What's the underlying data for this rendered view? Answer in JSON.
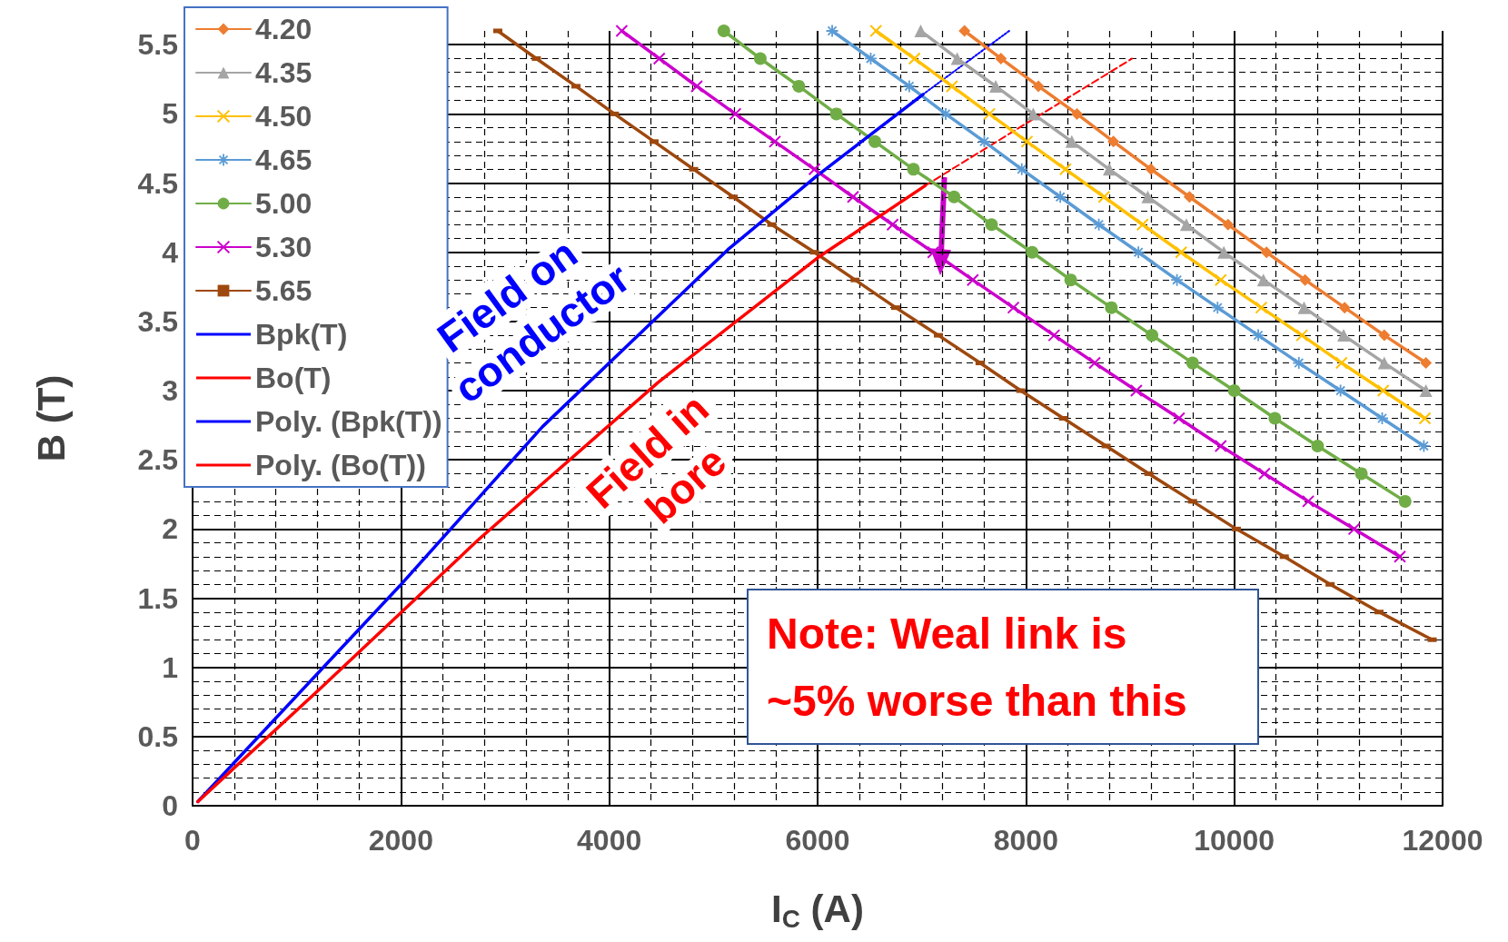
{
  "chart_data": {
    "type": "line",
    "xlabel": "I$_{C}$ (A)",
    "ylabel": "B (T)",
    "xlim": [
      0,
      12000
    ],
    "xticks": [
      0,
      2000,
      4000,
      6000,
      8000,
      10000,
      12000
    ],
    "ylim": [
      0,
      5.6
    ],
    "yticks": [
      0,
      0.5,
      1,
      1.5,
      2,
      2.5,
      3,
      3.5,
      4,
      4.5,
      5,
      5.5
    ],
    "grid": true,
    "legend": "top left",
    "line_style": "solid",
    "series": [
      {
        "name": "4.20",
        "color": "#ed7d31",
        "marker": "diamond",
        "x": [
          7410,
          7760,
          8120,
          8490,
          8840,
          9200,
          9570,
          9940,
          10310,
          10680,
          11060,
          11440,
          11840
        ],
        "values": [
          5.6,
          5.4,
          5.2,
          5.0,
          4.8,
          4.6,
          4.4,
          4.2,
          4.0,
          3.8,
          3.6,
          3.4,
          3.2
        ]
      },
      {
        "name": "4.35",
        "color": "#a5a5a5",
        "marker": "triangle",
        "x": [
          6990,
          7340,
          7710,
          8070,
          8440,
          8800,
          9170,
          9540,
          9900,
          10280,
          10670,
          11050,
          11440,
          11840
        ],
        "values": [
          5.6,
          5.4,
          5.2,
          5.0,
          4.8,
          4.6,
          4.4,
          4.2,
          4.0,
          3.8,
          3.6,
          3.4,
          3.2,
          3.0
        ]
      },
      {
        "name": "4.50",
        "color": "#ffc000",
        "marker": "cross",
        "x": [
          6560,
          6930,
          7290,
          7650,
          8010,
          8380,
          8750,
          9120,
          9490,
          9870,
          10260,
          10650,
          11030,
          11430,
          11830
        ],
        "values": [
          5.6,
          5.4,
          5.2,
          5.0,
          4.8,
          4.6,
          4.4,
          4.2,
          4.0,
          3.8,
          3.6,
          3.4,
          3.2,
          3.0,
          2.8
        ]
      },
      {
        "name": "4.65",
        "color": "#5b9bd5",
        "marker": "star",
        "x": [
          6140,
          6510,
          6880,
          7230,
          7600,
          7960,
          8330,
          8700,
          9080,
          9450,
          9840,
          10230,
          10620,
          11020,
          11420,
          11820
        ],
        "values": [
          5.6,
          5.4,
          5.2,
          5.0,
          4.8,
          4.6,
          4.4,
          4.2,
          4.0,
          3.8,
          3.6,
          3.4,
          3.2,
          3.0,
          2.8,
          2.6
        ]
      },
      {
        "name": "5.00",
        "color": "#70ad47",
        "marker": "circle",
        "x": [
          5100,
          5450,
          5820,
          6180,
          6550,
          6920,
          7310,
          7670,
          8060,
          8430,
          8820,
          9210,
          9600,
          10000,
          10390,
          10800,
          11220,
          11640
        ],
        "values": [
          5.6,
          5.4,
          5.2,
          5.0,
          4.8,
          4.6,
          4.4,
          4.2,
          4.0,
          3.8,
          3.6,
          3.4,
          3.2,
          3.0,
          2.8,
          2.6,
          2.4,
          2.2
        ]
      },
      {
        "name": "5.30",
        "color": "#cc00cc",
        "marker": "cross",
        "x": [
          4120,
          4480,
          4840,
          5210,
          5590,
          5970,
          6340,
          6720,
          7110,
          7490,
          7880,
          8270,
          8660,
          9060,
          9470,
          9870,
          10290,
          10710,
          11150,
          11590
        ],
        "values": [
          5.6,
          5.4,
          5.2,
          5.0,
          4.8,
          4.6,
          4.4,
          4.2,
          4.0,
          3.8,
          3.6,
          3.4,
          3.2,
          3.0,
          2.8,
          2.6,
          2.4,
          2.2,
          2.0,
          1.8
        ]
      },
      {
        "name": "5.65",
        "color": "#9e480e",
        "marker": "square",
        "x": [
          2930,
          3300,
          3680,
          4050,
          4430,
          4810,
          5190,
          5560,
          5970,
          6360,
          6750,
          7160,
          7560,
          7950,
          8360,
          8770,
          9180,
          9600,
          10020,
          10480,
          10920,
          11390,
          11900
        ],
        "values": [
          5.6,
          5.4,
          5.2,
          5.0,
          4.8,
          4.6,
          4.4,
          4.2,
          4.0,
          3.8,
          3.6,
          3.4,
          3.2,
          3.0,
          2.8,
          2.6,
          2.4,
          2.2,
          2.0,
          1.8,
          1.6,
          1.4,
          1.2
        ]
      },
      {
        "name": "Bpk(T)",
        "color": "#0000ff",
        "marker": "none",
        "x": [
          50,
          1230,
          1990,
          2740,
          3360,
          5140,
          5990,
          7010
        ],
        "values": [
          0.03,
          0.98,
          1.59,
          2.22,
          2.74,
          4.02,
          4.55,
          5.14
        ]
      },
      {
        "name": "Bo(T)",
        "color": "#ff0000",
        "marker": "none",
        "x": [
          50,
          1230,
          2740,
          4470,
          6000,
          7030
        ],
        "values": [
          0.03,
          0.85,
          1.92,
          3.06,
          3.96,
          4.48
        ]
      },
      {
        "name": "Poly. (Bpk(T))",
        "color": "#0000ff",
        "marker": "none",
        "line_style": "dotted",
        "x": [
          7010,
          7370,
          7840
        ],
        "values": [
          5.14,
          5.34,
          5.6
        ]
      },
      {
        "name": "Poly. (Bo(T))",
        "color": "#ff0000",
        "marker": "none",
        "line_style": "dashed",
        "x": [
          7030,
          8000,
          9020
        ],
        "values": [
          4.48,
          4.93,
          5.4
        ]
      }
    ],
    "annotations": [
      "Field on conductor",
      "Field in bore",
      "Note: Weal link is ~5% worse than this"
    ]
  }
}
